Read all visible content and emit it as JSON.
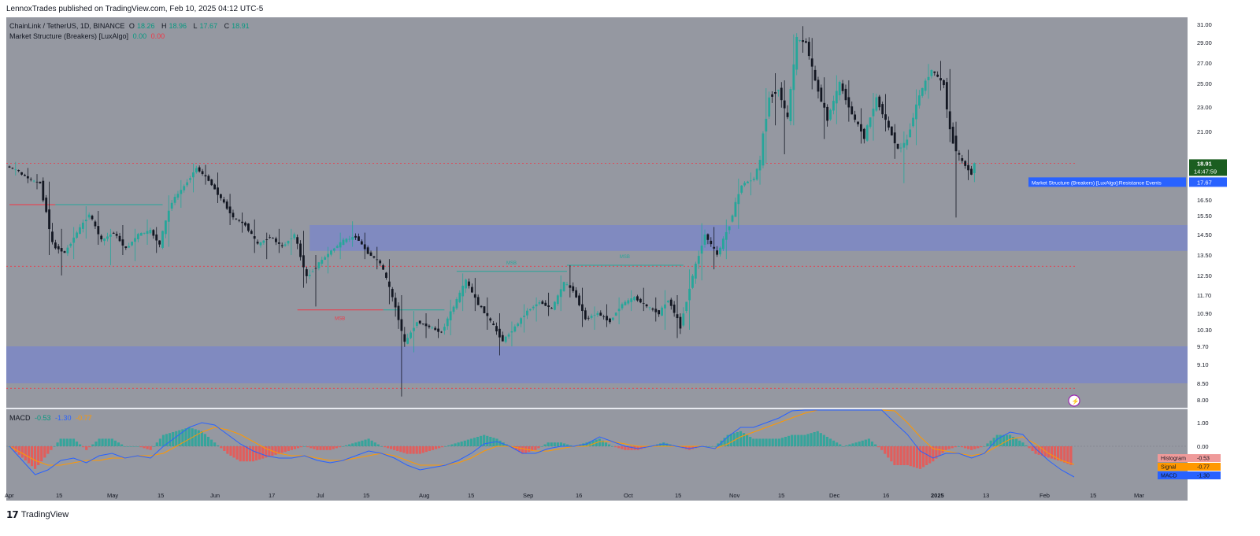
{
  "publisher": "LennoxTrades published on TradingView.com, Feb 10, 2025 04:12 UTC-5",
  "legend": {
    "symbol": "ChainLink / TetherUS, 1D, BINANCE",
    "ohlc": [
      {
        "k": "O",
        "v": "18.26"
      },
      {
        "k": "H",
        "v": "18.96"
      },
      {
        "k": "L",
        "v": "17.67"
      },
      {
        "k": "C",
        "v": "18.91"
      }
    ],
    "indicator": "Market Structure (Breakers) [LuxAlgo]",
    "ind_v1": "0.00",
    "ind_v2": "0.00"
  },
  "macd_legend": {
    "name": "MACD",
    "v1": "-0.53",
    "v2": "-1.30",
    "v3": "-0.77"
  },
  "footer": {
    "brand": "TradingView"
  },
  "colors": {
    "background": "#9598a1",
    "up": "#26a69a",
    "down": "#131722",
    "zone": "#7986cb",
    "hist_up": "#26a69a",
    "hist_down": "#ef5350",
    "macd_line": "#2962ff",
    "signal_line": "#ff9800"
  },
  "chart_data": {
    "type": "candlestick",
    "x_ticks": [
      "Apr",
      "15",
      "May",
      "15",
      "Jun",
      "17",
      "Jul",
      "15",
      "Aug",
      "15",
      "Sep",
      "16",
      "Oct",
      "15",
      "Nov",
      "15",
      "Dec",
      "16",
      "2025",
      "13",
      "Feb",
      "15",
      "Mar"
    ],
    "y_ticks": [
      "31.00",
      "29.00",
      "27.00",
      "25.00",
      "23.00",
      "21.00",
      "18.91",
      "17.67",
      "16.50",
      "15.50",
      "14.50",
      "13.50",
      "12.50",
      "11.70",
      "10.90",
      "10.30",
      "9.70",
      "9.10",
      "8.50",
      "8.00"
    ],
    "ylim": [
      8.0,
      31.0
    ],
    "price_label": {
      "price": "18.91",
      "countdown": "14:47:59"
    },
    "low_label": "17.67",
    "event_label": "Market Structure (Breakers) [LuxAlgo]:Resistance Events",
    "bars": [
      [
        "Apr 01",
        18.7,
        19.0,
        18.1,
        18.4
      ],
      [
        "Apr 05",
        18.3,
        18.6,
        17.6,
        17.8
      ],
      [
        "Apr 09",
        17.8,
        18.2,
        17.2,
        17.6
      ],
      [
        "Apr 12",
        17.5,
        17.7,
        13.5,
        14.0
      ],
      [
        "Apr 16",
        14.0,
        14.8,
        12.5,
        13.6
      ],
      [
        "Apr 20",
        13.6,
        14.9,
        13.3,
        14.6
      ],
      [
        "Apr 24",
        14.6,
        16.1,
        14.3,
        15.6
      ],
      [
        "Apr 28",
        15.6,
        15.8,
        14.0,
        14.2
      ],
      [
        "May 02",
        14.2,
        14.8,
        13.0,
        14.6
      ],
      [
        "May 06",
        14.6,
        15.0,
        13.5,
        13.8
      ],
      [
        "May 10",
        13.8,
        14.8,
        13.2,
        14.5
      ],
      [
        "May 14",
        14.5,
        15.3,
        14.0,
        14.7
      ],
      [
        "May 18",
        14.7,
        14.9,
        13.6,
        14.0
      ],
      [
        "May 21",
        14.0,
        16.8,
        13.9,
        16.4
      ],
      [
        "May 25",
        16.4,
        17.8,
        16.0,
        17.4
      ],
      [
        "May 29",
        17.4,
        18.9,
        17.0,
        18.6
      ],
      [
        "Jun 02",
        18.6,
        18.8,
        17.5,
        17.8
      ],
      [
        "Jun 06",
        17.8,
        18.3,
        16.3,
        16.6
      ],
      [
        "Jun 10",
        16.6,
        16.9,
        15.0,
        15.4
      ],
      [
        "Jun 14",
        15.4,
        15.7,
        14.6,
        15.0
      ],
      [
        "Jun 18",
        15.0,
        15.3,
        13.6,
        14.0
      ],
      [
        "Jun 22",
        14.0,
        14.6,
        13.3,
        14.4
      ],
      [
        "Jun 26",
        14.4,
        14.8,
        13.6,
        13.9
      ],
      [
        "Jun 30",
        13.9,
        14.8,
        13.5,
        14.5
      ],
      [
        "Jul 04",
        14.5,
        14.7,
        12.0,
        12.4
      ],
      [
        "Jul 08",
        12.4,
        13.5,
        11.2,
        13.1
      ],
      [
        "Jul 12",
        13.1,
        13.9,
        12.6,
        13.7
      ],
      [
        "Jul 16",
        13.7,
        14.6,
        13.3,
        14.2
      ],
      [
        "Jul 20",
        14.2,
        15.2,
        13.9,
        14.4
      ],
      [
        "Jul 24",
        14.4,
        14.6,
        13.3,
        13.6
      ],
      [
        "Jul 28",
        13.6,
        13.9,
        12.8,
        13.1
      ],
      [
        "Aug 01",
        13.1,
        13.3,
        11.3,
        11.6
      ],
      [
        "Aug 05",
        11.6,
        11.7,
        8.1,
        9.8
      ],
      [
        "Aug 09",
        9.8,
        11.0,
        9.5,
        10.6
      ],
      [
        "Aug 13",
        10.6,
        10.9,
        10.0,
        10.4
      ],
      [
        "Aug 17",
        10.4,
        10.7,
        10.0,
        10.2
      ],
      [
        "Aug 21",
        10.2,
        11.5,
        10.1,
        11.2
      ],
      [
        "Aug 25",
        11.2,
        12.6,
        11.0,
        12.3
      ],
      [
        "Aug 29",
        12.3,
        12.4,
        11.0,
        11.3
      ],
      [
        "Sep 02",
        11.3,
        11.6,
        10.3,
        10.6
      ],
      [
        "Sep 06",
        10.6,
        10.9,
        9.4,
        9.9
      ],
      [
        "Sep 10",
        9.9,
        10.6,
        9.7,
        10.4
      ],
      [
        "Sep 14",
        10.4,
        11.3,
        10.2,
        11.0
      ],
      [
        "Sep 18",
        11.0,
        11.6,
        10.6,
        11.4
      ],
      [
        "Sep 22",
        11.4,
        11.8,
        10.8,
        11.1
      ],
      [
        "Sep 26",
        11.1,
        12.5,
        11.0,
        12.2
      ],
      [
        "Sep 30",
        12.2,
        13.0,
        11.6,
        11.9
      ],
      [
        "Oct 03",
        11.9,
        12.0,
        10.4,
        10.7
      ],
      [
        "Oct 07",
        10.7,
        11.2,
        10.3,
        10.9
      ],
      [
        "Oct 11",
        10.9,
        11.3,
        10.4,
        10.6
      ],
      [
        "Oct 15",
        10.6,
        11.6,
        10.5,
        11.3
      ],
      [
        "Oct 19",
        11.3,
        11.9,
        11.0,
        11.6
      ],
      [
        "Oct 23",
        11.6,
        12.0,
        11.0,
        11.2
      ],
      [
        "Oct 27",
        11.2,
        11.6,
        10.6,
        10.9
      ],
      [
        "Oct 31",
        10.9,
        11.9,
        10.3,
        11.5
      ],
      [
        "Nov 03",
        11.5,
        11.7,
        10.0,
        10.4
      ],
      [
        "Nov 07",
        10.4,
        12.8,
        10.3,
        12.5
      ],
      [
        "Nov 11",
        12.5,
        15.1,
        12.3,
        14.5
      ],
      [
        "Nov 15",
        14.5,
        14.9,
        12.8,
        13.5
      ],
      [
        "Nov 19",
        13.5,
        15.3,
        13.3,
        15.0
      ],
      [
        "Nov 23",
        15.0,
        17.9,
        14.8,
        17.5
      ],
      [
        "Nov 27",
        17.5,
        18.3,
        16.8,
        17.9
      ],
      [
        "Dec 01",
        17.9,
        19.4,
        17.5,
        19.1
      ],
      [
        "Dec 03",
        19.1,
        24.6,
        18.9,
        23.8
      ],
      [
        "Dec 06",
        23.8,
        26.0,
        21.5,
        24.5
      ],
      [
        "Dec 09",
        24.5,
        25.3,
        19.5,
        22.0
      ],
      [
        "Dec 12",
        22.0,
        29.9,
        21.5,
        29.3
      ],
      [
        "Dec 15",
        29.3,
        30.8,
        28.0,
        29.0
      ],
      [
        "Dec 18",
        29.0,
        29.5,
        24.5,
        25.2
      ],
      [
        "Dec 21",
        25.2,
        25.6,
        20.5,
        22.0
      ],
      [
        "Dec 25",
        22.0,
        25.8,
        21.6,
        25.0
      ],
      [
        "Dec 29",
        25.0,
        25.3,
        21.8,
        22.4
      ],
      [
        "Jan 02",
        22.4,
        22.9,
        20.2,
        20.6
      ],
      [
        "Jan 06",
        20.6,
        24.2,
        20.4,
        23.7
      ],
      [
        "Jan 10",
        23.7,
        24.1,
        21.0,
        21.3
      ],
      [
        "Jan 14",
        21.3,
        21.6,
        19.2,
        19.8
      ],
      [
        "Jan 17",
        19.8,
        21.0,
        17.6,
        20.4
      ],
      [
        "Jan 20",
        20.4,
        24.5,
        20.1,
        24.0
      ],
      [
        "Jan 24",
        24.0,
        26.9,
        23.7,
        26.3
      ],
      [
        "Jan 28",
        26.3,
        27.2,
        24.4,
        24.9
      ],
      [
        "Feb 01",
        24.9,
        26.4,
        20.3,
        21.0
      ],
      [
        "Feb 03",
        21.0,
        21.8,
        15.4,
        19.3
      ],
      [
        "Feb 06",
        19.3,
        19.8,
        17.8,
        18.2
      ],
      [
        "Feb 10",
        18.26,
        18.96,
        17.67,
        18.91
      ]
    ],
    "zones": [
      {
        "x0": "Jul 08",
        "x1": "end",
        "y0": 13.7,
        "y1": 15.0
      },
      {
        "x0": "start",
        "x1": "end",
        "y0": 8.5,
        "y1": 9.7
      }
    ],
    "dashed_levels": [
      {
        "y": 18.9,
        "color": "#f23645"
      },
      {
        "y": 12.95,
        "color": "#f23645"
      },
      {
        "y": 8.35,
        "color": "#f23645"
      }
    ],
    "structure_lines": [
      {
        "label": "",
        "x0": "Apr 01",
        "x1": "Apr 16",
        "y": 16.2,
        "color": "#f23645"
      },
      {
        "label": "",
        "x0": "Apr 16",
        "x1": "May 21",
        "y": 16.2,
        "color": "#26a69a"
      },
      {
        "label": "MSB",
        "x0": "Jul 04",
        "x1": "Aug 01",
        "y": 11.05,
        "color": "#f23645"
      },
      {
        "label": "",
        "x0": "Aug 01",
        "x1": "Aug 21",
        "y": 11.05,
        "color": "#26a69a"
      },
      {
        "label": "MSB",
        "x0": "Aug 25",
        "x1": "Sep 30",
        "y": 12.7,
        "color": "#26a69a"
      },
      {
        "label": "MSB",
        "x0": "Sep 30",
        "x1": "Nov 07",
        "y": 13.0,
        "color": "#26a69a"
      }
    ],
    "macd": {
      "y_ticks": [
        "1.00",
        "0.00"
      ],
      "ylim": [
        -1.6,
        1.6
      ],
      "labels": [
        {
          "name": "Histogram",
          "value": "-0.53",
          "color": "#ef9a9a"
        },
        {
          "name": "Signal",
          "value": "-0.77",
          "color": "#ff9800"
        },
        {
          "name": "MACD",
          "value": "-1.30",
          "color": "#2962ff"
        }
      ],
      "macd_line": [
        0.0,
        -0.6,
        -1.2,
        -1.0,
        -0.6,
        -0.5,
        -0.7,
        -0.4,
        -0.3,
        -0.5,
        -0.4,
        -0.5,
        0.0,
        0.4,
        0.8,
        1.0,
        0.9,
        0.5,
        0.1,
        -0.2,
        -0.4,
        -0.5,
        -0.5,
        -0.4,
        -0.6,
        -0.7,
        -0.6,
        -0.4,
        -0.2,
        -0.3,
        -0.5,
        -0.8,
        -1.0,
        -0.9,
        -0.8,
        -0.6,
        -0.3,
        0.1,
        0.2,
        0.0,
        -0.3,
        -0.3,
        -0.1,
        0.0,
        0.0,
        0.1,
        0.4,
        0.2,
        0.0,
        -0.1,
        0.0,
        0.1,
        0.0,
        -0.1,
        0.0,
        -0.1,
        0.4,
        0.8,
        0.8,
        1.0,
        1.2,
        1.5,
        1.7,
        2.0,
        2.0,
        1.8,
        2.0,
        2.2,
        1.8,
        1.0,
        0.5,
        -0.2,
        -0.5,
        -0.3,
        -0.3,
        -0.5,
        -0.3,
        0.3,
        0.6,
        0.5,
        -0.1,
        -0.6,
        -1.0,
        -1.3
      ],
      "signal_line": [
        0.0,
        -0.3,
        -0.6,
        -0.8,
        -0.8,
        -0.7,
        -0.6,
        -0.6,
        -0.5,
        -0.5,
        -0.4,
        -0.4,
        -0.3,
        0.0,
        0.3,
        0.6,
        0.8,
        0.7,
        0.5,
        0.2,
        -0.1,
        -0.3,
        -0.4,
        -0.4,
        -0.5,
        -0.6,
        -0.6,
        -0.5,
        -0.4,
        -0.3,
        -0.4,
        -0.6,
        -0.8,
        -0.8,
        -0.8,
        -0.7,
        -0.5,
        -0.2,
        0.0,
        0.0,
        -0.1,
        -0.2,
        -0.2,
        -0.1,
        0.0,
        0.0,
        0.2,
        0.2,
        0.1,
        0.0,
        0.0,
        0.0,
        0.0,
        0.0,
        0.0,
        -0.1,
        0.1,
        0.4,
        0.6,
        0.8,
        1.0,
        1.2,
        1.4,
        1.6,
        1.8,
        1.8,
        1.9,
        2.0,
        1.9,
        1.5,
        1.0,
        0.4,
        -0.1,
        -0.2,
        -0.3,
        -0.4,
        -0.3,
        0.0,
        0.3,
        0.4,
        0.1,
        -0.3,
        -0.6,
        -0.77
      ]
    }
  }
}
